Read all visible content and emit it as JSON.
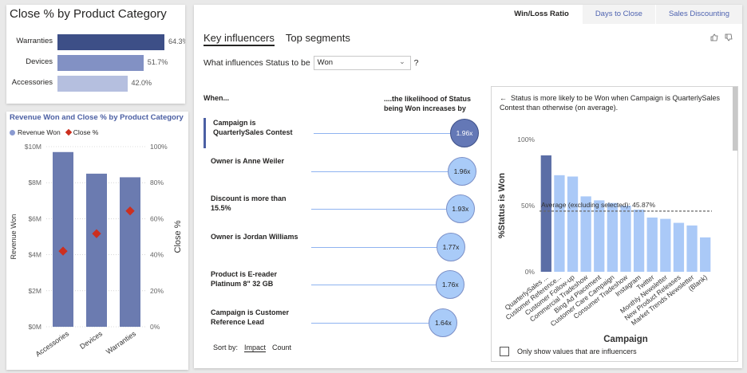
{
  "close_pct_card": {
    "title": "Close % by Product Category",
    "bars": [
      {
        "label": "Warranties",
        "value": 64.3,
        "value_text": "64.3%",
        "color": "#3d4f87"
      },
      {
        "label": "Devices",
        "value": 51.7,
        "value_text": "51.7%",
        "color": "#8291c4"
      },
      {
        "label": "Accessories",
        "value": 42.0,
        "value_text": "42.0%",
        "color": "#b5bfdf"
      }
    ]
  },
  "revenue_card": {
    "title": "Revenue Won and Close % by Product Category",
    "legend": {
      "revenue_won": "Revenue Won",
      "close_pct": "Close %"
    }
  },
  "chart_data": [
    {
      "type": "bar",
      "title": "Revenue Won and Close % by Product Category",
      "categories": [
        "Accessories",
        "Devices",
        "Warranties"
      ],
      "series": [
        {
          "name": "Revenue Won",
          "values": [
            9.7,
            8.5,
            8.3
          ],
          "color": "#6b7bb0"
        },
        {
          "name": "Close %",
          "values": [
            42.0,
            51.7,
            64.3
          ],
          "color": "#cc2f1f"
        }
      ],
      "xlabel": "",
      "ylabel": "Revenue Won",
      "ylim": [
        0,
        10
      ],
      "y_ticks": [
        "$0M",
        "$2M",
        "$4M",
        "$6M",
        "$8M",
        "$10M"
      ],
      "y2label": "Close %",
      "y2lim": [
        0,
        100
      ],
      "y2_ticks": [
        "0%",
        "20%",
        "40%",
        "60%",
        "80%",
        "100%"
      ],
      "grid": true
    },
    {
      "type": "bar",
      "title": "",
      "categories": [
        "QuarterlySales ...",
        "Customer Reference...",
        "Customer Follow-up",
        "Commercial Tradeshow",
        "Bing Ad Placement",
        "Customer Care Campaign",
        "Consumer Tradeshow",
        "Instagram",
        "Twitter",
        "Monthly Newsletter",
        "New Product Releases",
        "Market Trends Newsletter",
        "(Blank)"
      ],
      "values": [
        88,
        73,
        72,
        57,
        54,
        52,
        50,
        47,
        41,
        40,
        37,
        35,
        26
      ],
      "highlight_index": 0,
      "highlight_color": "#5b6ea6",
      "bar_color": "#aac9f7",
      "xlabel": "Campaign",
      "ylabel": "%Status is Won",
      "ylim": [
        0,
        100
      ],
      "y_ticks": [
        "0%",
        "50%",
        "100%"
      ],
      "reference_line": {
        "value": 45.87,
        "label": "Average (excluding selected): 45.87%"
      }
    }
  ],
  "tabs": [
    {
      "label": "Win/Loss Ratio",
      "active": true
    },
    {
      "label": "Days to Close",
      "active": false
    },
    {
      "label": "Sales Discounting",
      "active": false
    }
  ],
  "key_influencers": {
    "tabs": [
      "Key influencers",
      "Top segments"
    ],
    "question_prefix": "What influences Status to be",
    "dropdown_value": "Won",
    "question_suffix": "?",
    "col_when": "When...",
    "col_likelihood": "....the likelihood of Status being Won increases by",
    "influencers": [
      {
        "text": "Campaign is QuarterlySales Contest",
        "factor": 1.96,
        "label": "1.96x",
        "selected": true
      },
      {
        "text": "Owner is Anne Weiler",
        "factor": 1.96,
        "label": "1.96x",
        "selected": false
      },
      {
        "text": "Discount is more than 15.5%",
        "factor": 1.93,
        "label": "1.93x",
        "selected": false
      },
      {
        "text": "Owner is Jordan Williams",
        "factor": 1.77,
        "label": "1.77x",
        "selected": false
      },
      {
        "text": "Product is E-reader Platinum 8\" 32 GB",
        "factor": 1.76,
        "label": "1.76x",
        "selected": false
      },
      {
        "text": "Campaign is Customer Reference Lead",
        "factor": 1.64,
        "label": "1.64x",
        "selected": false
      }
    ],
    "sort_label": "Sort by:",
    "sort_options": [
      "Impact",
      "Count"
    ],
    "sort_selected": "Impact"
  },
  "detail": {
    "back_icon": "back-arrow-icon",
    "message": "Status is more likely to be Won when Campaign is QuarterlySales Contest than otherwise (on average).",
    "checkbox_label": "Only show values that are influencers"
  },
  "icons": {
    "thumbs_up": "thumbs-up-icon",
    "thumbs_down": "thumbs-down-icon"
  }
}
